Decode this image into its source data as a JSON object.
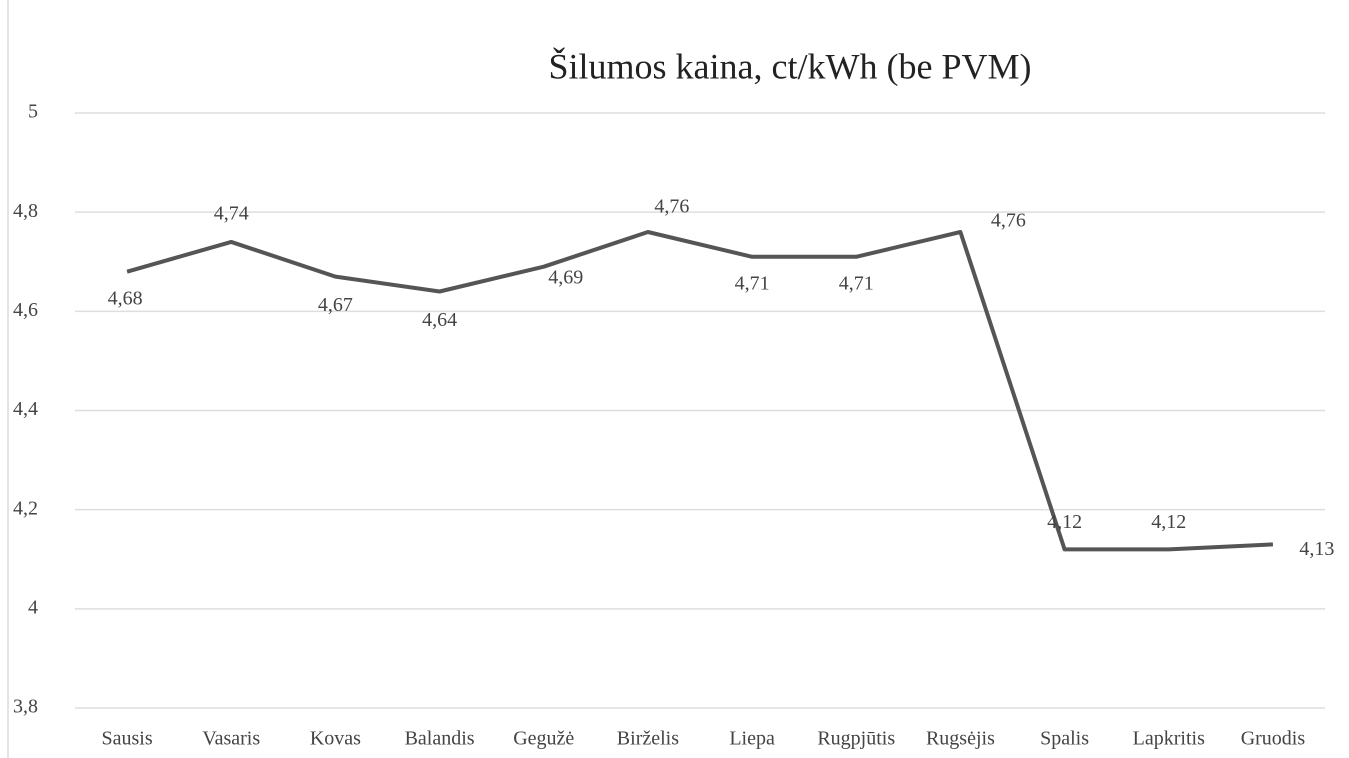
{
  "chart_data": {
    "type": "line",
    "title": "Šilumos kaina, ct/kWh (be PVM)",
    "categories": [
      "Sausis",
      "Vasaris",
      "Kovas",
      "Balandis",
      "Gegužė",
      "Birželis",
      "Liepa",
      "Rugpjūtis",
      "Rugsėjis",
      "Spalis",
      "Lapkritis",
      "Gruodis"
    ],
    "series": [
      {
        "name": "Šilumos kaina",
        "color": "#555555",
        "values": [
          4.68,
          4.74,
          4.67,
          4.64,
          4.69,
          4.76,
          4.71,
          4.71,
          4.76,
          4.12,
          4.12,
          4.13
        ],
        "value_labels": [
          "4,68",
          "4,74",
          "4,67",
          "4,64",
          "4,69",
          "4,76",
          "4,71",
          "4,71",
          "4,76",
          "4,12",
          "4,12",
          "4,13"
        ]
      }
    ],
    "ylim": [
      3.8,
      5
    ],
    "yticks": [
      {
        "value": 3.8,
        "label": "3,8"
      },
      4,
      {
        "value": 4.2,
        "label": "4,2"
      },
      {
        "value": 4.4,
        "label": "4,4"
      },
      {
        "value": 4.6,
        "label": "4,6"
      },
      {
        "value": 4.8,
        "label": "4,8"
      },
      5
    ],
    "grid": true
  }
}
